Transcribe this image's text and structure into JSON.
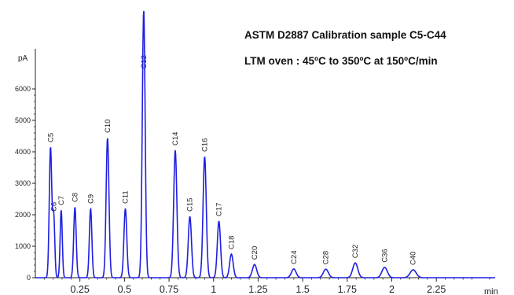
{
  "chart_data": {
    "type": "line",
    "title": "ASTM D2887 Calibration sample C5-C44",
    "subtitle": "LTM oven : 45ºC to 350ºC at 150ºC/min",
    "ylabel": "pA",
    "xlabel": "min",
    "xlim": [
      0,
      2.58
    ],
    "ylim": [
      0,
      8500
    ],
    "xticks": [
      0.25,
      0.5,
      0.75,
      1,
      1.25,
      1.5,
      1.75,
      2,
      2.25
    ],
    "xtick_labels": [
      "0.25",
      "0.5",
      "0.75",
      "1",
      "1.25",
      "1.5",
      "1.75",
      "2",
      "2.25"
    ],
    "yticks": [
      0,
      1000,
      2000,
      3000,
      4000,
      5000,
      6000
    ],
    "ytick_labels": [
      "0",
      "1000",
      "2000",
      "3000",
      "4000",
      "5000",
      "6000"
    ],
    "grid": false,
    "line_color": "#1f1fe0",
    "peaks": [
      {
        "label": "C5",
        "x": 0.085,
        "y": 4150,
        "width": 0.007
      },
      {
        "label": "C6",
        "x": 0.103,
        "y": 1950,
        "width": 0.006
      },
      {
        "label": "C7",
        "x": 0.145,
        "y": 2150,
        "width": 0.006
      },
      {
        "label": "C8",
        "x": 0.222,
        "y": 2250,
        "width": 0.007
      },
      {
        "label": "C9",
        "x": 0.31,
        "y": 2200,
        "width": 0.007
      },
      {
        "label": "C10",
        "x": 0.405,
        "y": 4450,
        "width": 0.008
      },
      {
        "label": "C11",
        "x": 0.505,
        "y": 2200,
        "width": 0.008
      },
      {
        "label": "C12",
        "x": 0.608,
        "y": 8500,
        "width": 0.008
      },
      {
        "label": "C14",
        "x": 0.785,
        "y": 4050,
        "width": 0.009
      },
      {
        "label": "C15",
        "x": 0.867,
        "y": 1950,
        "width": 0.009
      },
      {
        "label": "C16",
        "x": 0.95,
        "y": 3850,
        "width": 0.009
      },
      {
        "label": "C17",
        "x": 1.03,
        "y": 1800,
        "width": 0.009
      },
      {
        "label": "C18",
        "x": 1.1,
        "y": 750,
        "width": 0.01
      },
      {
        "label": "C20",
        "x": 1.23,
        "y": 420,
        "width": 0.012
      },
      {
        "label": "C24",
        "x": 1.45,
        "y": 280,
        "width": 0.013
      },
      {
        "label": "C28",
        "x": 1.63,
        "y": 270,
        "width": 0.014
      },
      {
        "label": "C32",
        "x": 1.795,
        "y": 470,
        "width": 0.014
      },
      {
        "label": "C36",
        "x": 1.96,
        "y": 330,
        "width": 0.015
      },
      {
        "label": "C40",
        "x": 2.12,
        "y": 250,
        "width": 0.017
      }
    ]
  }
}
